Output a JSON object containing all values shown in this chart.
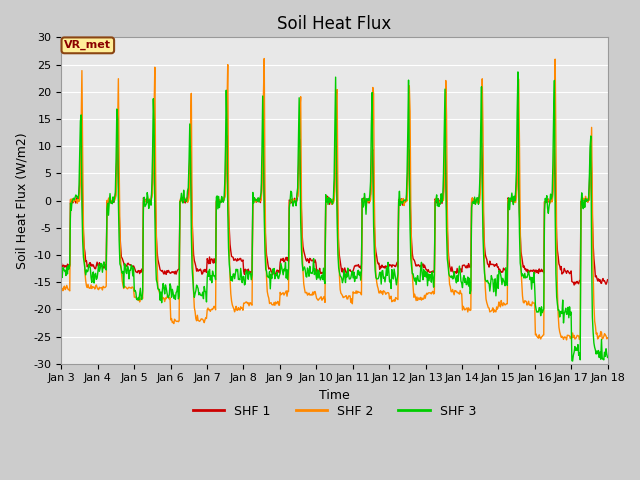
{
  "title": "Soil Heat Flux",
  "xlabel": "Time",
  "ylabel": "Soil Heat Flux (W/m2)",
  "ylim": [
    -30,
    30
  ],
  "xlim_days": [
    3,
    18
  ],
  "yticks": [
    -30,
    -25,
    -20,
    -15,
    -10,
    -5,
    0,
    5,
    10,
    15,
    20,
    25,
    30
  ],
  "xtick_labels": [
    "Jan 3",
    "Jan 4",
    "Jan 5",
    "Jan 6",
    "Jan 7",
    "Jan 8",
    "Jan 9",
    "Jan 10",
    "Jan 11",
    "Jan 12",
    "Jan 13",
    "Jan 14",
    "Jan 15",
    "Jan 16",
    "Jan 17",
    "Jan 18"
  ],
  "colors": {
    "SHF 1": "#cc0000",
    "SHF 2": "#ff8800",
    "SHF 3": "#00cc00"
  },
  "legend_label": "VR_met",
  "legend_box_color": "#ffee99",
  "legend_box_edge": "#8B4513",
  "background_color": "#cccccc",
  "plot_bg_color": "#e8e8e8",
  "linewidth": 1.0,
  "title_fontsize": 12,
  "axis_label_fontsize": 9,
  "tick_fontsize": 8,
  "shf1_peaks": [
    12,
    12,
    12,
    12,
    12,
    11,
    12,
    11,
    11,
    12,
    11,
    12,
    11,
    10,
    12
  ],
  "shf1_troughs": [
    -12,
    -12,
    -13,
    -13,
    -11,
    -13,
    -11,
    -13,
    -12,
    -12,
    -13,
    -12,
    -13,
    -13,
    -15
  ],
  "shf2_peaks": [
    24,
    23,
    25,
    20,
    25,
    26,
    21,
    25,
    25,
    24,
    25,
    25,
    24,
    28,
    14
  ],
  "shf2_troughs": [
    -16,
    -16,
    -18,
    -22,
    -20,
    -19,
    -17,
    -18,
    -17,
    -18,
    -17,
    -20,
    -19,
    -25,
    -25
  ],
  "shf3_peaks": [
    19,
    21,
    22,
    16,
    24,
    21,
    21,
    23,
    21,
    22,
    21,
    21,
    24,
    22,
    13
  ],
  "shf3_troughs": [
    -13,
    -13,
    -17,
    -17,
    -14,
    -14,
    -13,
    -14,
    -14,
    -14,
    -14,
    -15,
    -14,
    -21,
    -28
  ]
}
